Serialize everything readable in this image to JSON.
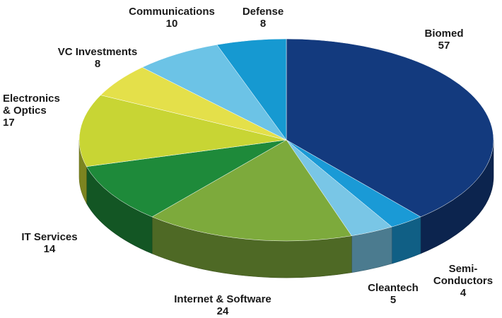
{
  "chart_data": {
    "type": "pie",
    "title": "",
    "style": "3d-tilted",
    "slices": [
      {
        "label": "Biomed",
        "value": 57,
        "color": "#133a7e"
      },
      {
        "label": "Semi-\nConductors",
        "value": 4,
        "color": "#1a9ad6"
      },
      {
        "label": "Cleantech",
        "value": 5,
        "color": "#79c6e6"
      },
      {
        "label": "Internet & Software",
        "value": 24,
        "color": "#7daa3c"
      },
      {
        "label": "IT Services",
        "value": 14,
        "color": "#1e8a3a"
      },
      {
        "label": "Electronics\n& Optics",
        "value": 17,
        "color": "#c8d534"
      },
      {
        "label": "VC Investments",
        "value": 8,
        "color": "#e4e04a"
      },
      {
        "label": "Communications",
        "value": 10,
        "color": "#6cc3e6"
      },
      {
        "label": "Defense",
        "value": 8,
        "color": "#1699d1"
      }
    ]
  }
}
